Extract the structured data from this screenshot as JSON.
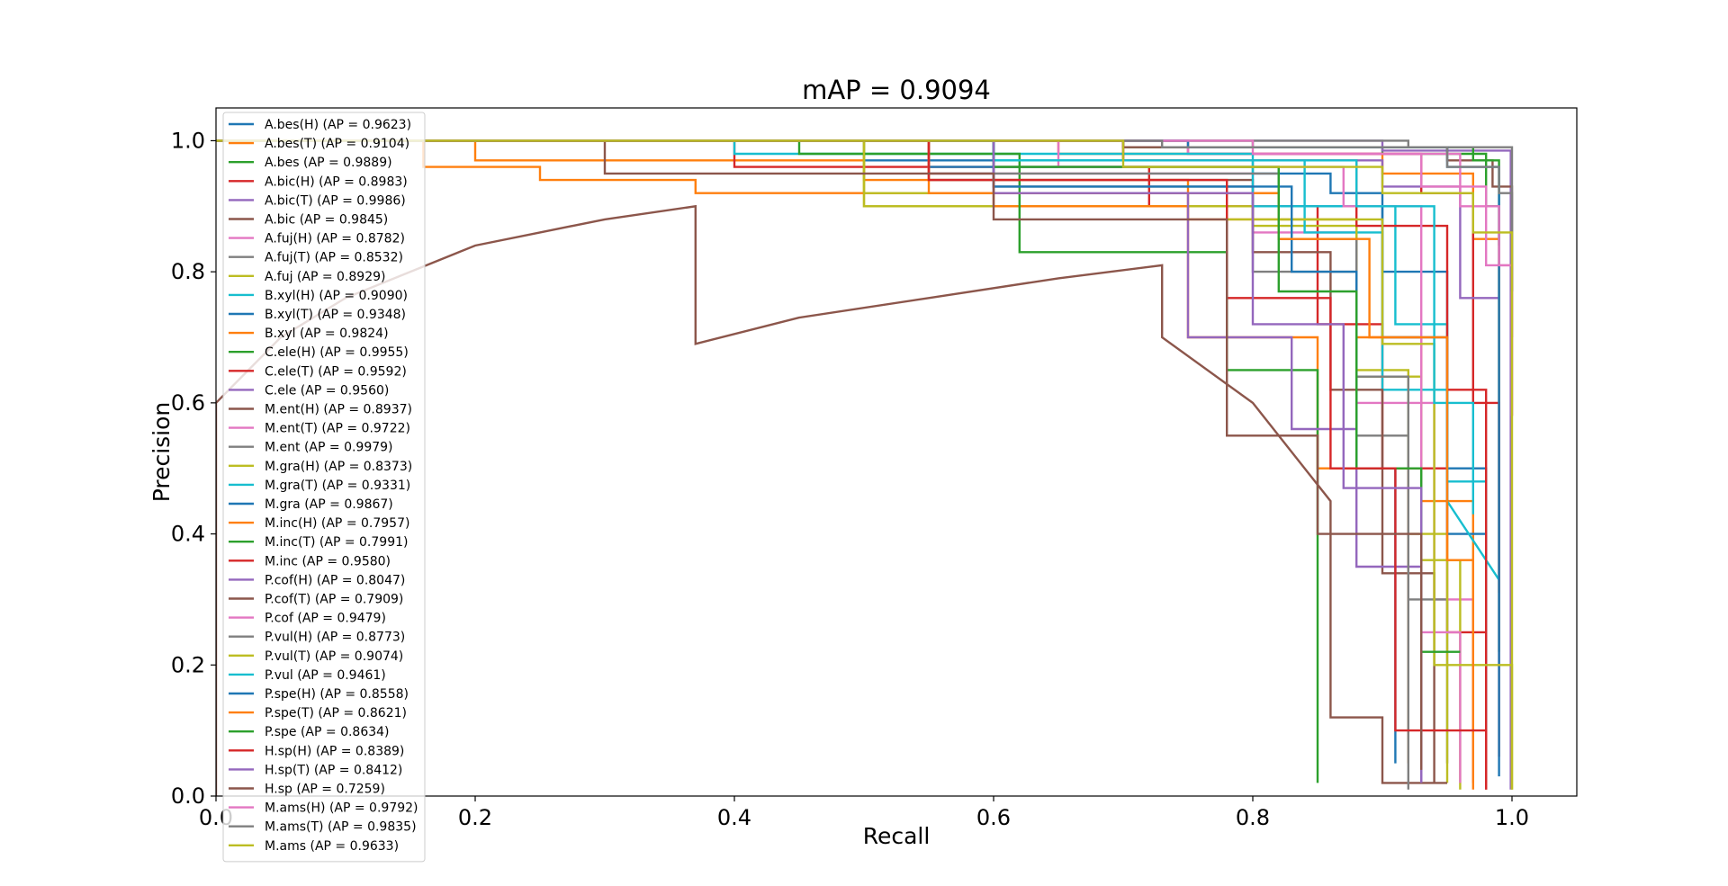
{
  "chart_data": {
    "type": "line",
    "title": "mAP = 0.9094",
    "xlabel": "Recall",
    "ylabel": "Precision",
    "xlim": [
      0.0,
      1.05
    ],
    "ylim": [
      0.0,
      1.05
    ],
    "xticks": [
      "0.0",
      "0.2",
      "0.4",
      "0.6",
      "0.8",
      "1.0"
    ],
    "yticks": [
      "0.0",
      "0.2",
      "0.4",
      "0.6",
      "0.8",
      "1.0"
    ],
    "grid": false,
    "legend_position": "upper-left",
    "series": [
      {
        "name": "A.bes(H) (AP = 0.9623)",
        "color": "#1f77b4",
        "x": [
          0,
          0.5,
          0.5,
          0.8,
          0.8,
          0.86,
          0.86,
          0.9,
          0.9,
          0.95,
          0.95,
          0.98,
          0.98
        ],
        "y": [
          1.0,
          1.0,
          0.97,
          0.97,
          0.95,
          0.95,
          0.92,
          0.92,
          0.8,
          0.8,
          0.5,
          0.5,
          0.02
        ]
      },
      {
        "name": "A.bes(T) (AP = 0.9104)",
        "color": "#ff7f0e",
        "x": [
          0,
          0.2,
          0.2,
          0.5,
          0.5,
          0.75,
          0.75,
          0.88,
          0.88,
          0.93,
          0.93,
          0.97,
          0.97
        ],
        "y": [
          1.0,
          1.0,
          0.97,
          0.97,
          0.94,
          0.94,
          0.88,
          0.88,
          0.7,
          0.7,
          0.45,
          0.45,
          0.02
        ]
      },
      {
        "name": "A.bes (AP = 0.9889)",
        "color": "#2ca02c",
        "x": [
          0,
          0.7,
          0.7,
          0.9,
          0.9,
          0.98,
          0.98,
          0.99,
          0.99
        ],
        "y": [
          1.0,
          1.0,
          0.99,
          0.99,
          0.98,
          0.98,
          0.9,
          0.9,
          0.22
        ]
      },
      {
        "name": "A.bic(H) (AP = 0.8983)",
        "color": "#d62728",
        "x": [
          0,
          0.4,
          0.4,
          0.72,
          0.72,
          0.85,
          0.85,
          0.9,
          0.9,
          0.95,
          0.95,
          0.98
        ],
        "y": [
          1.0,
          1.0,
          0.96,
          0.96,
          0.9,
          0.9,
          0.72,
          0.72,
          0.5,
          0.5,
          0.25,
          0.25
        ]
      },
      {
        "name": "A.bic(T) (AP = 0.9986)",
        "color": "#9467bd",
        "x": [
          0,
          0.9,
          0.9,
          0.999,
          0.999
        ],
        "y": [
          1.0,
          1.0,
          0.985,
          0.985,
          0.01
        ]
      },
      {
        "name": "A.bic (AP = 0.9845)",
        "color": "#8c564b",
        "x": [
          0,
          0.7,
          0.7,
          0.95,
          0.95,
          0.985,
          0.985,
          1.0,
          1.0
        ],
        "y": [
          1.0,
          1.0,
          0.99,
          0.99,
          0.97,
          0.97,
          0.93,
          0.93,
          0.7
        ]
      },
      {
        "name": "A.fuj(H) (AP = 0.8782)",
        "color": "#e377c2",
        "x": [
          0,
          0.55,
          0.55,
          0.8,
          0.8,
          0.88,
          0.88,
          0.94,
          0.94,
          0.97,
          0.97
        ],
        "y": [
          1.0,
          1.0,
          0.95,
          0.95,
          0.86,
          0.86,
          0.6,
          0.6,
          0.3,
          0.3,
          0.02
        ]
      },
      {
        "name": "A.fuj(T) (AP = 0.8532)",
        "color": "#7f7f7f",
        "x": [
          0,
          0.6,
          0.6,
          0.8,
          0.8,
          0.88,
          0.88,
          0.92,
          0.92,
          0.95,
          0.95
        ],
        "y": [
          1.0,
          1.0,
          0.93,
          0.93,
          0.8,
          0.8,
          0.55,
          0.55,
          0.3,
          0.3,
          0.05
        ]
      },
      {
        "name": "A.fuj (AP = 0.8929)",
        "color": "#bcbd22",
        "x": [
          0,
          0.5,
          0.5,
          0.8,
          0.8,
          0.88,
          0.88,
          0.92,
          0.92,
          0.95,
          0.95
        ],
        "y": [
          1.0,
          1.0,
          0.9,
          0.9,
          0.87,
          0.87,
          0.65,
          0.65,
          0.4,
          0.4,
          0.02
        ]
      },
      {
        "name": "B.xyl(H) (AP = 0.9090)",
        "color": "#17becf",
        "x": [
          0,
          0.6,
          0.6,
          0.84,
          0.84,
          0.9,
          0.9,
          0.95,
          0.95,
          0.98,
          0.98
        ],
        "y": [
          1.0,
          1.0,
          0.97,
          0.97,
          0.86,
          0.86,
          0.62,
          0.62,
          0.48,
          0.48,
          0.33
        ]
      },
      {
        "name": "B.xyl(T) (AP = 0.9348)",
        "color": "#1f77b4",
        "x": [
          0,
          0.55,
          0.55,
          0.82,
          0.82,
          0.9,
          0.9,
          0.95,
          0.95,
          0.98,
          0.98
        ],
        "y": [
          1.0,
          1.0,
          0.96,
          0.96,
          0.9,
          0.9,
          0.7,
          0.7,
          0.4,
          0.4,
          0.05
        ]
      },
      {
        "name": "B.xyl (AP = 0.9824)",
        "color": "#ff7f0e",
        "x": [
          0,
          0.65,
          0.65,
          0.9,
          0.9,
          0.97,
          0.97,
          0.99,
          0.99
        ],
        "y": [
          1.0,
          1.0,
          0.98,
          0.98,
          0.95,
          0.95,
          0.85,
          0.85,
          0.31
        ]
      },
      {
        "name": "C.ele(H) (AP = 0.9955)",
        "color": "#2ca02c",
        "x": [
          0,
          0.8,
          0.8,
          0.97,
          0.97,
          0.99,
          0.99
        ],
        "y": [
          1.0,
          1.0,
          0.99,
          0.99,
          0.97,
          0.97,
          0.84
        ]
      },
      {
        "name": "C.ele(T) (AP = 0.9592)",
        "color": "#d62728",
        "x": [
          0,
          0.75,
          0.75,
          0.93,
          0.93,
          0.97,
          0.97,
          0.99,
          0.99
        ],
        "y": [
          1.0,
          1.0,
          0.98,
          0.98,
          0.92,
          0.92,
          0.6,
          0.6,
          0.06
        ]
      },
      {
        "name": "C.ele (AP = 0.9560)",
        "color": "#9467bd",
        "x": [
          0,
          0.7,
          0.7,
          0.9,
          0.9,
          0.96,
          0.96,
          0.99,
          0.99
        ],
        "y": [
          1.0,
          1.0,
          0.97,
          0.97,
          0.93,
          0.93,
          0.76,
          0.76,
          0.76
        ]
      },
      {
        "name": "M.ent(H) (AP = 0.8937)",
        "color": "#8c564b",
        "x": [
          0,
          0.55,
          0.55,
          0.8,
          0.8,
          0.86,
          0.86,
          0.9,
          0.9,
          0.94,
          0.94
        ],
        "y": [
          1.0,
          1.0,
          0.94,
          0.94,
          0.83,
          0.83,
          0.62,
          0.62,
          0.34,
          0.34,
          0.02
        ]
      },
      {
        "name": "M.ent(T) (AP = 0.9722)",
        "color": "#e377c2",
        "x": [
          0,
          0.75,
          0.75,
          0.93,
          0.93,
          0.98,
          0.98,
          1.0,
          1.0
        ],
        "y": [
          1.0,
          1.0,
          0.98,
          0.98,
          0.93,
          0.93,
          0.81,
          0.81,
          0.58
        ]
      },
      {
        "name": "M.ent (AP = 0.9979)",
        "color": "#7f7f7f",
        "x": [
          0,
          0.92,
          0.92,
          1.0,
          1.0
        ],
        "y": [
          1.0,
          1.0,
          0.99,
          0.99,
          0.77
        ]
      },
      {
        "name": "M.gra(H) (AP = 0.8373)",
        "color": "#bcbd22",
        "x": [
          0,
          0.5,
          0.5,
          0.78,
          0.78,
          0.88,
          0.88,
          0.93,
          0.93,
          0.96,
          0.96
        ],
        "y": [
          1.0,
          1.0,
          0.9,
          0.9,
          0.88,
          0.88,
          0.64,
          0.64,
          0.36,
          0.36,
          0.01
        ]
      },
      {
        "name": "M.gra(T) (AP = 0.9331)",
        "color": "#17becf",
        "x": [
          0,
          0.4,
          0.4,
          0.8,
          0.8,
          0.91,
          0.91,
          0.95,
          0.95,
          0.99
        ],
        "y": [
          1.0,
          1.0,
          0.98,
          0.98,
          0.9,
          0.9,
          0.72,
          0.72,
          0.45,
          0.33
        ]
      },
      {
        "name": "M.gra (AP = 0.9867)",
        "color": "#1f77b4",
        "x": [
          0,
          0.75,
          0.75,
          0.95,
          0.95,
          0.99,
          0.99
        ],
        "y": [
          1.0,
          1.0,
          0.99,
          0.99,
          0.96,
          0.96,
          0.03
        ]
      },
      {
        "name": "M.inc(H) (AP = 0.7957)",
        "color": "#ff7f0e",
        "x": [
          0,
          0.16,
          0.16,
          0.25,
          0.25,
          0.37,
          0.37,
          0.6,
          0.6,
          0.75,
          0.75,
          0.85,
          0.85,
          0.92,
          0.92
        ],
        "y": [
          1.0,
          1.0,
          0.96,
          0.96,
          0.94,
          0.94,
          0.92,
          0.92,
          0.9,
          0.9,
          0.7,
          0.7,
          0.5,
          0.5,
          0.05
        ]
      },
      {
        "name": "M.inc(T) (AP = 0.7991)",
        "color": "#2ca02c",
        "x": [
          0,
          0.45,
          0.45,
          0.62,
          0.62,
          0.78,
          0.78,
          0.85,
          0.85
        ],
        "y": [
          1.0,
          1.0,
          0.98,
          0.98,
          0.83,
          0.83,
          0.65,
          0.65,
          0.02
        ]
      },
      {
        "name": "M.inc (AP = 0.9580)",
        "color": "#d62728",
        "x": [
          0,
          0.7,
          0.7,
          0.88,
          0.88,
          0.95,
          0.95,
          0.98,
          0.98
        ],
        "y": [
          1.0,
          1.0,
          0.97,
          0.97,
          0.87,
          0.87,
          0.62,
          0.62,
          0.01
        ]
      },
      {
        "name": "P.cof(H) (AP = 0.8047)",
        "color": "#9467bd",
        "x": [
          0,
          0.6,
          0.6,
          0.75,
          0.75,
          0.83,
          0.83,
          0.88,
          0.88,
          0.93,
          0.93
        ],
        "y": [
          1.0,
          1.0,
          0.92,
          0.92,
          0.7,
          0.7,
          0.56,
          0.56,
          0.35,
          0.35,
          0.02
        ]
      },
      {
        "name": "P.cof(T) (AP = 0.7909)",
        "color": "#8c564b",
        "x": [
          0,
          0.0,
          0.05,
          0.1,
          0.15,
          0.2,
          0.25,
          0.3,
          0.37,
          0.37,
          0.45,
          0.55,
          0.65,
          0.73,
          0.73,
          0.8,
          0.86,
          0.86,
          0.9,
          0.9,
          0.95
        ],
        "y": [
          0.0,
          0.6,
          0.7,
          0.76,
          0.8,
          0.84,
          0.86,
          0.88,
          0.9,
          0.69,
          0.73,
          0.76,
          0.79,
          0.81,
          0.7,
          0.6,
          0.45,
          0.12,
          0.12,
          0.02,
          0.02
        ]
      },
      {
        "name": "P.cof (AP = 0.9479)",
        "color": "#e377c2",
        "x": [
          0,
          0.65,
          0.65,
          0.87,
          0.87,
          0.93,
          0.93,
          0.96,
          0.96
        ],
        "y": [
          1.0,
          1.0,
          0.96,
          0.96,
          0.9,
          0.9,
          0.25,
          0.25,
          0.02
        ]
      },
      {
        "name": "P.vul(H) (AP = 0.8773)",
        "color": "#7f7f7f",
        "x": [
          0,
          0.55,
          0.55,
          0.82,
          0.82,
          0.88,
          0.88,
          0.92,
          0.92
        ],
        "y": [
          1.0,
          1.0,
          0.95,
          0.95,
          0.85,
          0.85,
          0.64,
          0.64,
          0.01
        ]
      },
      {
        "name": "P.vul(T) (AP = 0.9074)",
        "color": "#bcbd22",
        "x": [
          0,
          0.5,
          0.5,
          0.82,
          0.82,
          0.9,
          0.9,
          0.94,
          0.94,
          1.0,
          1.0
        ],
        "y": [
          1.0,
          1.0,
          0.92,
          0.92,
          0.88,
          0.88,
          0.69,
          0.69,
          0.2,
          0.2,
          0.01
        ]
      },
      {
        "name": "P.vul (AP = 0.9461)",
        "color": "#17becf",
        "x": [
          0,
          0.6,
          0.6,
          0.88,
          0.88,
          0.94,
          0.94,
          0.97,
          0.97
        ],
        "y": [
          1.0,
          1.0,
          0.97,
          0.97,
          0.9,
          0.9,
          0.6,
          0.6,
          0.43
        ]
      },
      {
        "name": "P.spe(H) (AP = 0.8558)",
        "color": "#1f77b4",
        "x": [
          0,
          0.6,
          0.6,
          0.83,
          0.83,
          0.88,
          0.88,
          0.91,
          0.91
        ],
        "y": [
          1.0,
          1.0,
          0.93,
          0.93,
          0.8,
          0.8,
          0.5,
          0.5,
          0.05
        ]
      },
      {
        "name": "P.spe(T) (AP = 0.8621)",
        "color": "#ff7f0e",
        "x": [
          0,
          0.55,
          0.55,
          0.82,
          0.82,
          0.89,
          0.89,
          0.95,
          0.95,
          0.97,
          0.97
        ],
        "y": [
          1.0,
          1.0,
          0.92,
          0.92,
          0.85,
          0.85,
          0.7,
          0.7,
          0.36,
          0.36,
          0.01
        ]
      },
      {
        "name": "P.spe (AP = 0.8634)",
        "color": "#2ca02c",
        "x": [
          0,
          0.6,
          0.6,
          0.82,
          0.82,
          0.88,
          0.88,
          0.93,
          0.93,
          0.96
        ],
        "y": [
          1.0,
          1.0,
          0.96,
          0.96,
          0.77,
          0.77,
          0.5,
          0.5,
          0.22,
          0.22
        ]
      },
      {
        "name": "H.sp(H) (AP = 0.8389)",
        "color": "#d62728",
        "x": [
          0,
          0.55,
          0.55,
          0.78,
          0.78,
          0.86,
          0.86,
          0.91,
          0.91,
          0.98,
          0.98
        ],
        "y": [
          1.0,
          1.0,
          0.94,
          0.94,
          0.76,
          0.76,
          0.5,
          0.5,
          0.1,
          0.1,
          0.01
        ]
      },
      {
        "name": "H.sp(T) (AP = 0.8412)",
        "color": "#9467bd",
        "x": [
          0,
          0.6,
          0.6,
          0.8,
          0.8,
          0.87,
          0.87,
          0.93,
          0.93
        ],
        "y": [
          1.0,
          1.0,
          0.92,
          0.92,
          0.72,
          0.72,
          0.47,
          0.47,
          0.02
        ]
      },
      {
        "name": "H.sp (AP = 0.7259)",
        "color": "#8c564b",
        "x": [
          0,
          0.3,
          0.3,
          0.6,
          0.6,
          0.78,
          0.78,
          0.85,
          0.85,
          0.93,
          0.93
        ],
        "y": [
          1.0,
          1.0,
          0.95,
          0.95,
          0.88,
          0.88,
          0.55,
          0.55,
          0.4,
          0.4,
          0.04
        ]
      },
      {
        "name": "M.ams(H) (AP = 0.9792)",
        "color": "#e377c2",
        "x": [
          0,
          0.8,
          0.8,
          0.96,
          0.96,
          0.99,
          0.99,
          1.0,
          1.0
        ],
        "y": [
          1.0,
          1.0,
          0.98,
          0.98,
          0.9,
          0.9,
          0.81,
          0.81,
          0.58
        ]
      },
      {
        "name": "M.ams(T) (AP = 0.9835)",
        "color": "#7f7f7f",
        "x": [
          0,
          0.73,
          0.73,
          0.95,
          0.95,
          0.99,
          0.99,
          1.0,
          1.0
        ],
        "y": [
          1.0,
          1.0,
          0.99,
          0.99,
          0.96,
          0.96,
          0.92,
          0.92,
          0.77
        ]
      },
      {
        "name": "M.ams (AP = 0.9633)",
        "color": "#bcbd22",
        "x": [
          0,
          0.7,
          0.7,
          0.9,
          0.9,
          0.97,
          0.97,
          1.0,
          1.0
        ],
        "y": [
          1.0,
          1.0,
          0.96,
          0.96,
          0.92,
          0.92,
          0.86,
          0.86,
          0.01
        ]
      }
    ]
  }
}
